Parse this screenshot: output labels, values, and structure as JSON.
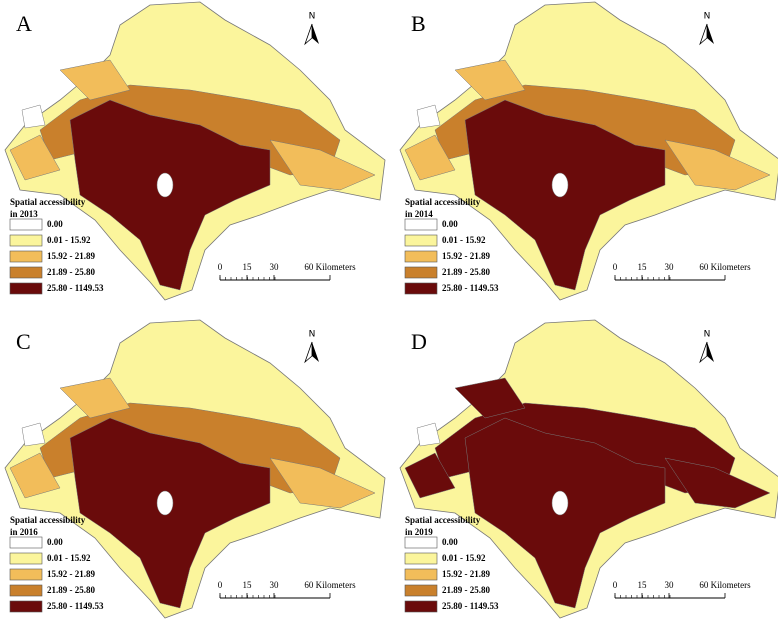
{
  "panels": [
    {
      "label": "A",
      "legend_title": [
        "Spatial accessibility",
        "in 2013"
      ],
      "dominant": 1
    },
    {
      "label": "B",
      "legend_title": [
        "Spatial accessibility",
        "in 2014"
      ],
      "dominant": 1
    },
    {
      "label": "C",
      "legend_title": [
        "Spatial accessibility",
        "in 2016"
      ],
      "dominant": 1
    },
    {
      "label": "D",
      "legend_title": [
        "Spatial accessibility",
        "in 2019"
      ],
      "dominant": 4
    }
  ],
  "legend_classes": [
    {
      "label": "0.00",
      "color": "#ffffff"
    },
    {
      "label": "0.01 - 15.92",
      "color": "#fbf59c"
    },
    {
      "label": "15.92 - 21.89",
      "color": "#f2bd5a"
    },
    {
      "label": "21.89 - 25.80",
      "color": "#c9802c"
    },
    {
      "label": "25.80 - 1149.53",
      "color": "#6a0b0b"
    }
  ],
  "scale_labels": [
    "0",
    "15",
    "30",
    "60 Kilometers"
  ],
  "north": "N"
}
